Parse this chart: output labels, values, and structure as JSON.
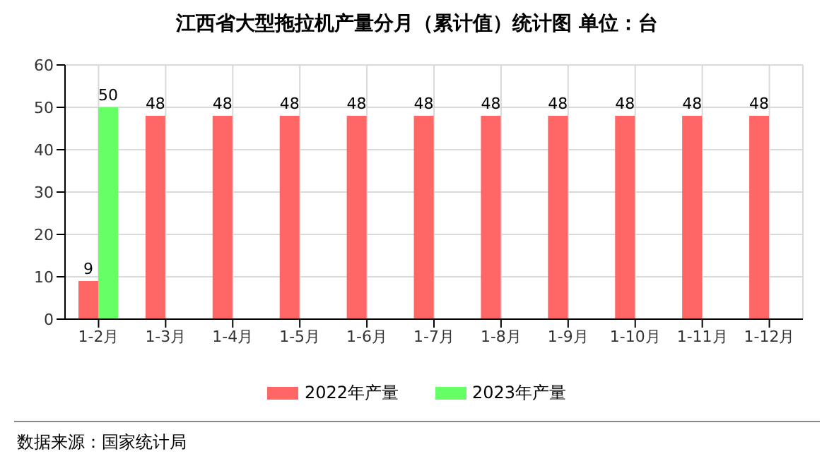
{
  "chart_data": {
    "type": "bar",
    "title": "江西省大型拖拉机产量分月（累计值）统计图 单位：台",
    "categories": [
      "1-2月",
      "1-3月",
      "1-4月",
      "1-5月",
      "1-6月",
      "1-7月",
      "1-8月",
      "1-9月",
      "1-10月",
      "1-11月",
      "1-12月"
    ],
    "series": [
      {
        "name": "2022年产量",
        "color": "#ff6666",
        "values": [
          9,
          48,
          48,
          48,
          48,
          48,
          48,
          48,
          48,
          48,
          48
        ]
      },
      {
        "name": "2023年产量",
        "color": "#66ff66",
        "values": [
          50,
          null,
          null,
          null,
          null,
          null,
          null,
          null,
          null,
          null,
          null
        ]
      }
    ],
    "ylim": [
      0,
      60
    ],
    "yticks": [
      0,
      10,
      20,
      30,
      40,
      50,
      60
    ],
    "grid": true,
    "legend": "bottom",
    "data_labels": true,
    "annotations": [
      "数据来源：国家统计局"
    ]
  }
}
